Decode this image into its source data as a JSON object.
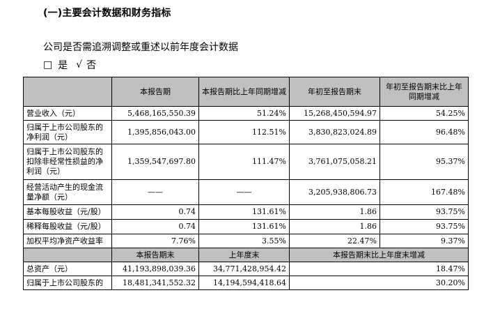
{
  "section_title": "(一)主要会计数据和财务指标",
  "question": "公司是否需追溯调整或重述以前年度会计数据",
  "answer": {
    "checkbox": "□",
    "yes": "是",
    "check": "√",
    "no": "否"
  },
  "table1": {
    "headers": [
      "",
      "本报告期",
      "本报告期比上年同期增减",
      "年初至报告期末",
      "年初至报告期末比上年同期增减"
    ],
    "rows": [
      {
        "label": "营业收入（元）",
        "current": "5,468,165,550.39",
        "current_change": "51.24%",
        "ytd": "15,268,450,594.97",
        "ytd_change": "54.25%"
      },
      {
        "label": "归属于上市公司股东的净利润（元）",
        "current": "1,395,856,043.00",
        "current_change": "112.51%",
        "ytd": "3,830,823,024.89",
        "ytd_change": "96.48%"
      },
      {
        "label": "归属于上市公司股东的扣除非经常性损益的净利润（元）",
        "current": "1,359,547,697.80",
        "current_change": "111.47%",
        "ytd": "3,761,075,058.21",
        "ytd_change": "95.37%"
      },
      {
        "label": "经营活动产生的现金流量净额（元）",
        "current": "——",
        "current_change": "——",
        "ytd": "3,205,938,806.73",
        "ytd_change": "167.48%"
      },
      {
        "label": "基本每股收益（元/股）",
        "current": "0.74",
        "current_change": "131.61%",
        "ytd": "1.86",
        "ytd_change": "93.75%"
      },
      {
        "label": "稀释每股收益（元/股）",
        "current": "0.74",
        "current_change": "131.61%",
        "ytd": "1.86",
        "ytd_change": "93.75%"
      },
      {
        "label": "加权平均净资产收益率",
        "current": "7.76%",
        "current_change": "3.55%",
        "ytd": "22.47%",
        "ytd_change": "9.37%"
      }
    ]
  },
  "table2": {
    "headers": [
      "",
      "本报告期末",
      "上年度末",
      "本报告期末比上年度末增减"
    ],
    "rows": [
      {
        "label": "总资产（元）",
        "period_end": "41,193,898,039.36",
        "prior_year_end": "34,771,428,954.42",
        "change": "18.47%"
      },
      {
        "label": "归属于上市公司股东的",
        "period_end": "18,481,341,552.32",
        "prior_year_end": "14,194,594,418.64",
        "change": "30.20%"
      }
    ]
  }
}
